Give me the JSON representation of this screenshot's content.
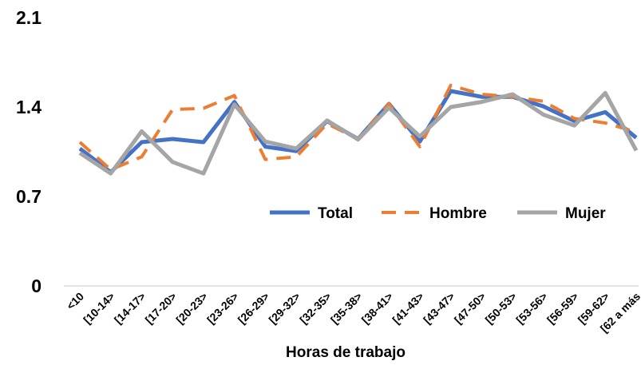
{
  "chart_data": {
    "type": "line",
    "x_label": "Horas de trabajo",
    "categories": [
      "<10",
      "[10-14>",
      "[14-17>",
      "[17-20>",
      "[20-23>",
      "[23-26>",
      "[26-29>",
      "[29-32>",
      "[32-35>",
      "[35-38>",
      "[38-41>",
      "[41-43>",
      "[43-47>",
      "[47-50>",
      "[50-53>",
      "[53-56>",
      "[56-59>",
      "[59-62>",
      "[62 a más"
    ],
    "series": [
      {
        "name": "Total",
        "color": "#4472c4",
        "dash": false,
        "values": [
          1.075,
          0.89,
          1.125,
          1.15,
          1.125,
          1.44,
          1.09,
          1.055,
          1.29,
          1.15,
          1.425,
          1.13,
          1.525,
          1.48,
          1.48,
          1.405,
          1.29,
          1.36,
          1.16
        ]
      },
      {
        "name": "Hombre",
        "color": "#ed7d31",
        "dash": true,
        "values": [
          1.125,
          0.91,
          1.01,
          1.38,
          1.39,
          1.49,
          0.99,
          1.01,
          1.27,
          1.15,
          1.425,
          1.09,
          1.57,
          1.5,
          1.48,
          1.445,
          1.31,
          1.275,
          1.205
        ]
      },
      {
        "name": "Mujer",
        "color": "#a5a5a5",
        "dash": false,
        "values": [
          1.04,
          0.88,
          1.21,
          0.97,
          0.88,
          1.42,
          1.13,
          1.075,
          1.295,
          1.145,
          1.395,
          1.17,
          1.4,
          1.44,
          1.5,
          1.34,
          1.255,
          1.51,
          1.06
        ]
      }
    ],
    "ylim": [
      0,
      2.1
    ],
    "yticks": [
      0,
      0.7,
      1.4,
      2.1
    ],
    "grid": false,
    "legend": "center-right"
  }
}
